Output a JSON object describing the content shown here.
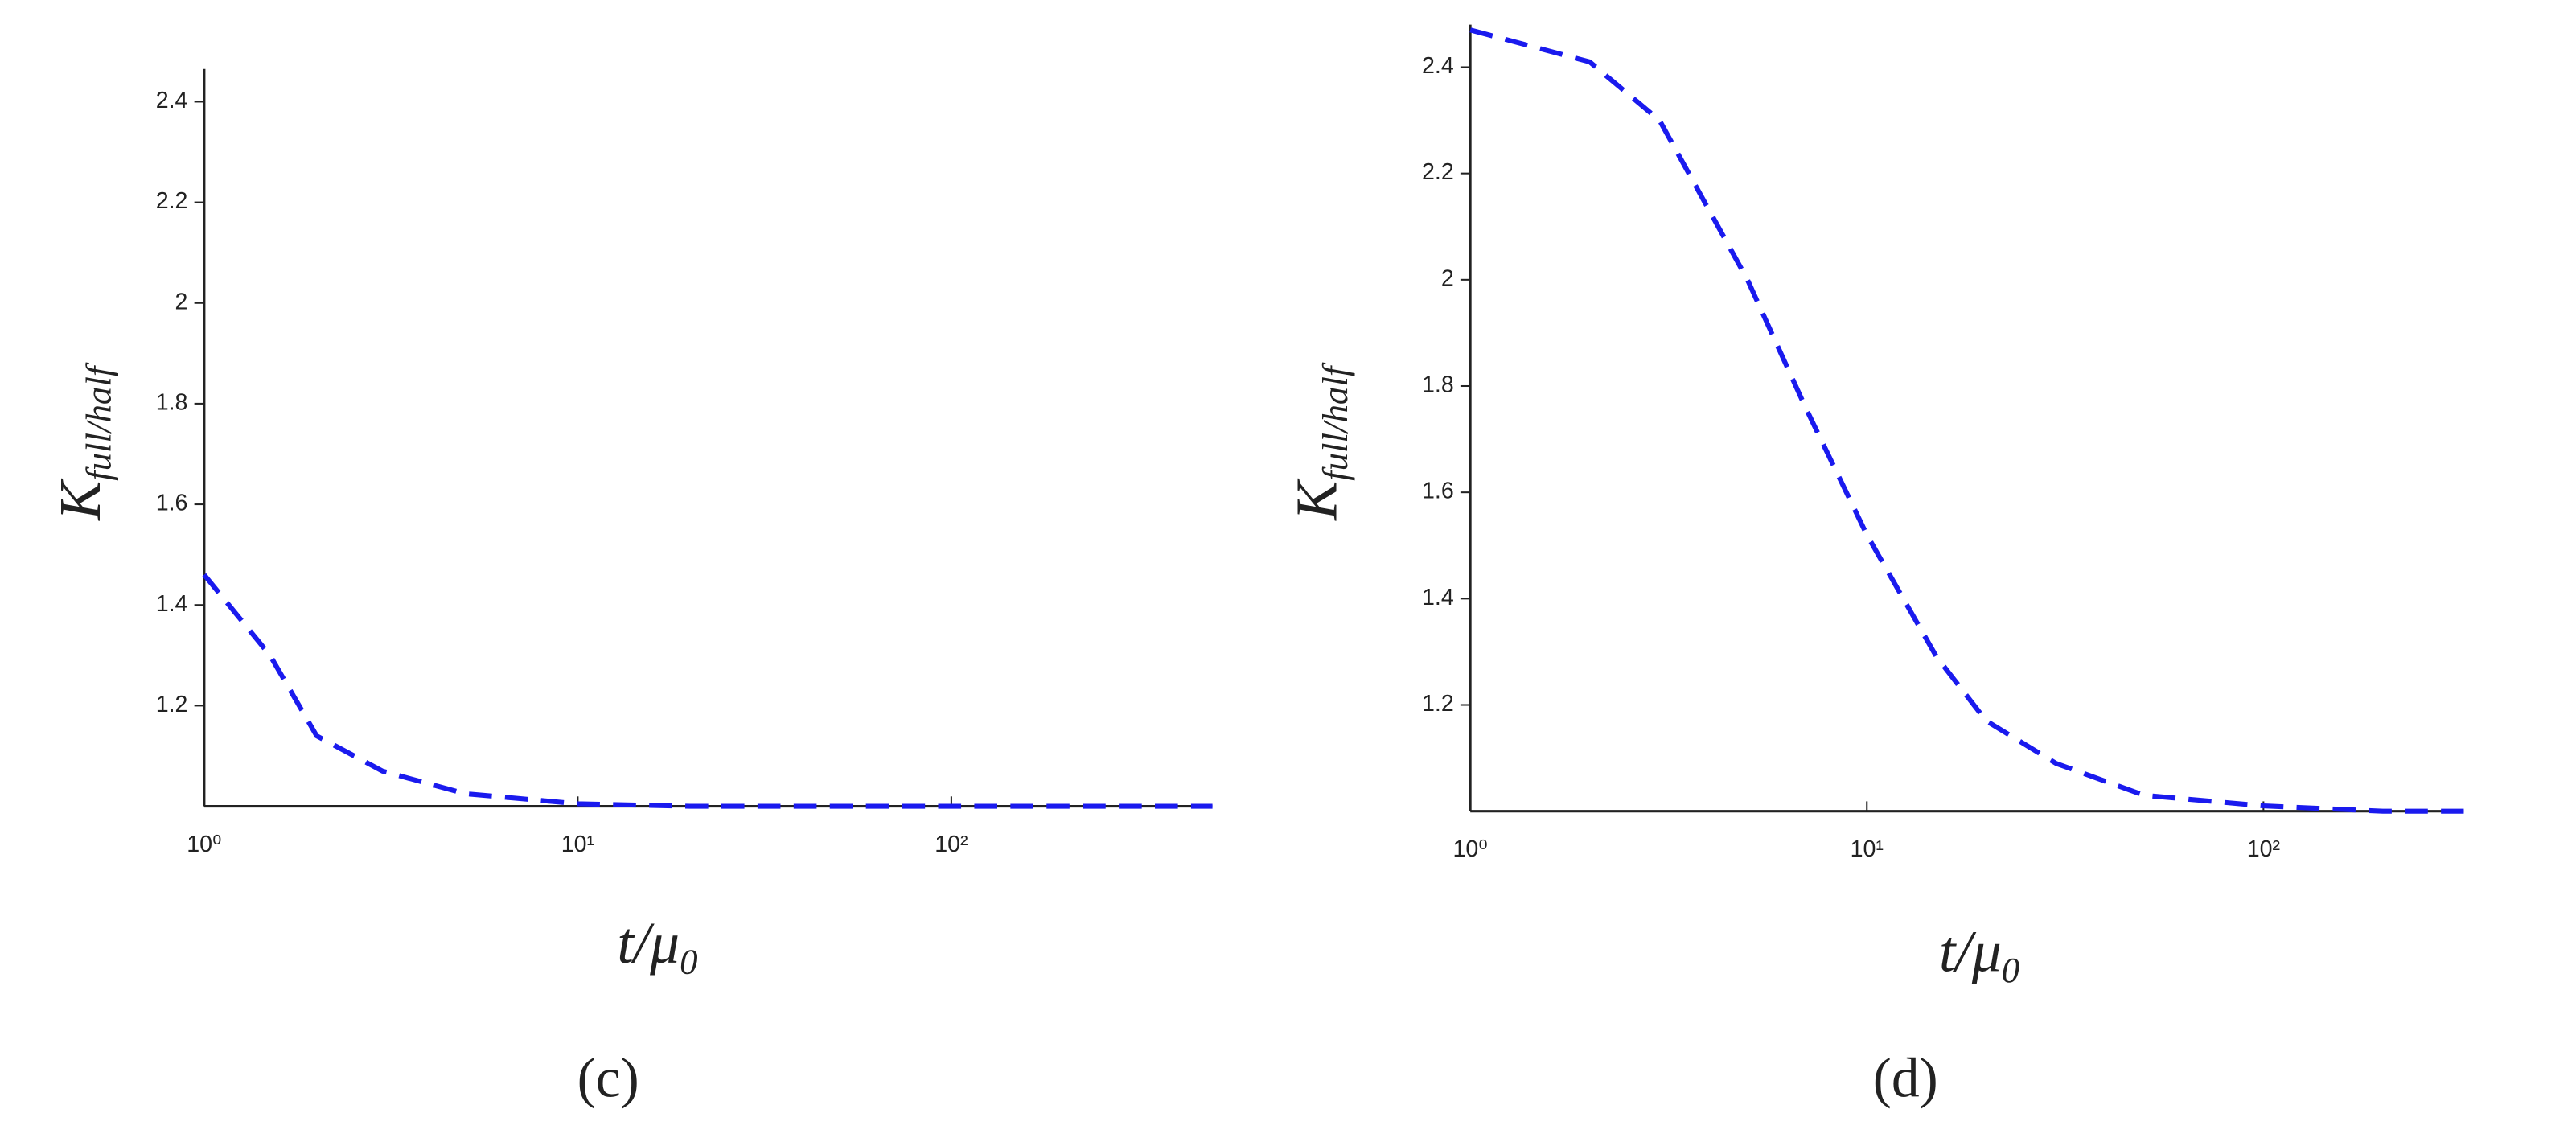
{
  "chart_data": [
    {
      "type": "line",
      "caption": "(c)",
      "ylabel": "K",
      "ylabel_sub": "full/half",
      "xlabel": "t/μ",
      "xlabel_sub": "0",
      "xscale": "log",
      "xlim": [
        1,
        500
      ],
      "ylim": [
        1.0,
        2.465
      ],
      "xticks": [
        {
          "value": 1,
          "label": "10⁰"
        },
        {
          "value": 10,
          "label": "10¹"
        },
        {
          "value": 100,
          "label": "10²"
        }
      ],
      "yticks": [
        1.2,
        1.4,
        1.6,
        1.8,
        2.0,
        2.2,
        2.4
      ],
      "series": [
        {
          "color": "#1a1aee",
          "x": [
            1,
            1.5,
            2,
            3,
            5,
            10,
            20,
            50,
            100,
            500
          ],
          "values": [
            1.46,
            1.3,
            1.14,
            1.07,
            1.025,
            1.005,
            1.0,
            1.0,
            1.0,
            1.0
          ]
        }
      ]
    },
    {
      "type": "line",
      "caption": "(d)",
      "ylabel": "K",
      "ylabel_sub": "full/half",
      "xlabel": "t/μ",
      "xlabel_sub": "0",
      "xscale": "log",
      "xlim": [
        1,
        320
      ],
      "ylim": [
        1.0,
        2.48
      ],
      "xticks": [
        {
          "value": 1,
          "label": "10⁰"
        },
        {
          "value": 10,
          "label": "10¹"
        },
        {
          "value": 100,
          "label": "10²"
        }
      ],
      "yticks": [
        1.2,
        1.4,
        1.6,
        1.8,
        2.0,
        2.2,
        2.4
      ],
      "series": [
        {
          "color": "#1a1aee",
          "x": [
            1,
            2,
            3,
            5,
            7,
            10,
            15,
            20,
            30,
            50,
            100,
            200,
            320
          ],
          "values": [
            2.47,
            2.41,
            2.3,
            2.0,
            1.76,
            1.52,
            1.29,
            1.17,
            1.09,
            1.03,
            1.01,
            1.0,
            1.0
          ]
        }
      ]
    }
  ]
}
